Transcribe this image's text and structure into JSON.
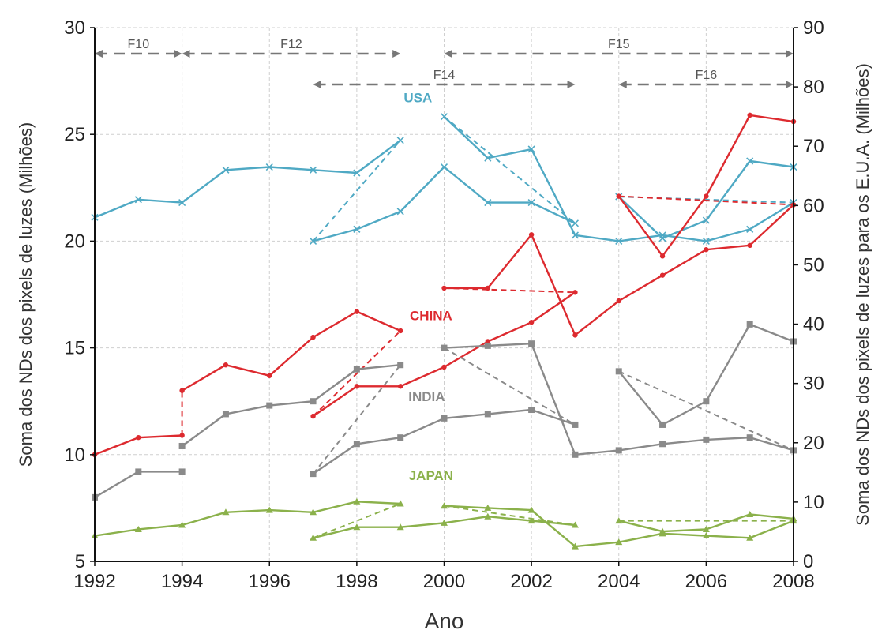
{
  "chart_data": {
    "type": "line",
    "xlabel": "Ano",
    "ylabel_left": "Soma dos NDs dos pixels de luzes (Milhões)",
    "ylabel_right": "Soma dos NDs dos pixels de luzes para os E.U.A. (Milhões)",
    "xlim": [
      1992,
      2008
    ],
    "ylim_left": [
      5,
      30
    ],
    "ylim_right": [
      0,
      90
    ],
    "x_ticks": [
      "1992",
      "1994",
      "1996",
      "1998",
      "2000",
      "2002",
      "2004",
      "2006",
      "2008"
    ],
    "y_ticks_left": [
      "5",
      "10",
      "15",
      "20",
      "25",
      "30"
    ],
    "y_ticks_right": [
      "0",
      "10",
      "20",
      "30",
      "40",
      "50",
      "60",
      "70",
      "80",
      "90"
    ],
    "grid": true,
    "satellites": [
      {
        "label": "F10",
        "start": 1992,
        "end": 1994
      },
      {
        "label": "F12",
        "start": 1994,
        "end": 1999
      },
      {
        "label": "F14",
        "start": 1997,
        "end": 2003
      },
      {
        "label": "F15",
        "start": 2000,
        "end": 2008
      },
      {
        "label": "F16",
        "start": 2004,
        "end": 2008
      }
    ],
    "countries": [
      {
        "label": "USA",
        "color": "#4fa9c4",
        "axis": "right",
        "marker": "x",
        "segments": [
          {
            "style": "solid",
            "x": [
              1992,
              1993,
              1994,
              1995,
              1996,
              1997,
              1998,
              1999
            ],
            "y": [
              58,
              61,
              60.5,
              66,
              66.5,
              66,
              65.5,
              71
            ]
          },
          {
            "style": "solid",
            "x": [
              1997,
              1998,
              1999,
              2000,
              2001,
              2002,
              2003
            ],
            "y": [
              54,
              56,
              59,
              66.5,
              60.5,
              60.5,
              57
            ]
          },
          {
            "style": "solid",
            "x": [
              2000,
              2001,
              2002,
              2003,
              2004,
              2005,
              2006,
              2007,
              2008
            ],
            "y": [
              75,
              68,
              69.5,
              55,
              54,
              55,
              54,
              56,
              60.5
            ]
          },
          {
            "style": "solid",
            "x": [
              2004,
              2005,
              2006,
              2007,
              2008
            ],
            "y": [
              61.5,
              54.5,
              57.5,
              67.5,
              66.5
            ]
          },
          {
            "style": "dashed",
            "x": [
              1997,
              1999
            ],
            "y": [
              54,
              71
            ]
          },
          {
            "style": "dashed",
            "x": [
              2000,
              2003
            ],
            "y": [
              75,
              57
            ]
          },
          {
            "style": "dashed",
            "x": [
              2004,
              2008
            ],
            "y": [
              61.5,
              60.5
            ]
          }
        ]
      },
      {
        "label": "CHINA",
        "color": "#dd2a2f",
        "axis": "left",
        "marker": "dot",
        "segments": [
          {
            "style": "solid",
            "x": [
              1992,
              1993,
              1994
            ],
            "y": [
              10,
              10.8,
              10.9
            ]
          },
          {
            "style": "solid",
            "x": [
              1994,
              1995,
              1996,
              1997,
              1998,
              1999
            ],
            "y": [
              13,
              14.2,
              13.7,
              15.5,
              16.7,
              15.8
            ]
          },
          {
            "style": "solid",
            "x": [
              1997,
              1998,
              1999,
              2000,
              2001,
              2002,
              2003
            ],
            "y": [
              11.8,
              13.2,
              13.2,
              14.1,
              15.3,
              16.2,
              17.6
            ]
          },
          {
            "style": "solid",
            "x": [
              2000,
              2001,
              2002,
              2003,
              2004,
              2005,
              2006,
              2007,
              2008
            ],
            "y": [
              17.8,
              17.8,
              20.3,
              15.6,
              17.2,
              18.4,
              19.6,
              19.8,
              21.7
            ]
          },
          {
            "style": "solid",
            "x": [
              2004,
              2005,
              2006,
              2007,
              2008
            ],
            "y": [
              22.1,
              19.3,
              22.1,
              25.9,
              25.6
            ]
          },
          {
            "style": "dashed",
            "x": [
              1994,
              1994
            ],
            "y": [
              10.9,
              13
            ]
          },
          {
            "style": "dashed",
            "x": [
              1997,
              1999
            ],
            "y": [
              11.8,
              15.8
            ]
          },
          {
            "style": "dashed",
            "x": [
              2000,
              2003
            ],
            "y": [
              17.8,
              17.6
            ]
          },
          {
            "style": "dashed",
            "x": [
              2004,
              2008
            ],
            "y": [
              22.1,
              21.7
            ]
          }
        ]
      },
      {
        "label": "INDIA",
        "color": "#8a8a8a",
        "axis": "left",
        "marker": "square",
        "segments": [
          {
            "style": "solid",
            "x": [
              1992,
              1993,
              1994
            ],
            "y": [
              8,
              9.2,
              9.2
            ]
          },
          {
            "style": "solid",
            "x": [
              1994,
              1995,
              1996,
              1997,
              1998,
              1999
            ],
            "y": [
              10.4,
              11.9,
              12.3,
              12.5,
              14.0,
              14.2
            ]
          },
          {
            "style": "solid",
            "x": [
              1997,
              1998,
              1999,
              2000,
              2001,
              2002,
              2003
            ],
            "y": [
              9.1,
              10.5,
              10.8,
              11.7,
              11.9,
              12.1,
              11.4
            ]
          },
          {
            "style": "solid",
            "x": [
              2000,
              2001,
              2002,
              2003,
              2004,
              2005,
              2006,
              2007,
              2008
            ],
            "y": [
              15.0,
              15.1,
              15.2,
              10.0,
              10.2,
              10.5,
              10.7,
              10.8,
              10.2
            ]
          },
          {
            "style": "solid",
            "x": [
              2004,
              2005,
              2006,
              2007,
              2008
            ],
            "y": [
              13.9,
              11.4,
              12.5,
              16.1,
              15.3
            ]
          },
          {
            "style": "dashed",
            "x": [
              1997,
              1999
            ],
            "y": [
              9.1,
              14.2
            ]
          },
          {
            "style": "dashed",
            "x": [
              2000,
              2003
            ],
            "y": [
              15.0,
              11.4
            ]
          },
          {
            "style": "dashed",
            "x": [
              2004,
              2008
            ],
            "y": [
              13.9,
              10.2
            ]
          }
        ]
      },
      {
        "label": "JAPAN",
        "color": "#8bb14b",
        "axis": "left",
        "marker": "triangle",
        "segments": [
          {
            "style": "solid",
            "x": [
              1992,
              1993,
              1994,
              1995,
              1996,
              1997,
              1998,
              1999
            ],
            "y": [
              6.2,
              6.5,
              6.7,
              7.3,
              7.4,
              7.3,
              7.8,
              7.7
            ]
          },
          {
            "style": "solid",
            "x": [
              1997,
              1998,
              1999,
              2000,
              2001,
              2002,
              2003
            ],
            "y": [
              6.1,
              6.6,
              6.6,
              6.8,
              7.1,
              6.9,
              6.7
            ]
          },
          {
            "style": "solid",
            "x": [
              2000,
              2001,
              2002,
              2003,
              2004,
              2005,
              2006,
              2007,
              2008
            ],
            "y": [
              7.6,
              7.5,
              7.4,
              5.7,
              5.9,
              6.3,
              6.2,
              6.1,
              6.9
            ]
          },
          {
            "style": "solid",
            "x": [
              2004,
              2005,
              2006,
              2007,
              2008
            ],
            "y": [
              6.9,
              6.4,
              6.5,
              7.2,
              7.0
            ]
          },
          {
            "style": "dashed",
            "x": [
              1997,
              1999
            ],
            "y": [
              6.1,
              7.7
            ]
          },
          {
            "style": "dashed",
            "x": [
              2000,
              2003
            ],
            "y": [
              7.6,
              6.7
            ]
          },
          {
            "style": "dashed",
            "x": [
              2004,
              2008
            ],
            "y": [
              6.9,
              6.9
            ]
          }
        ]
      }
    ]
  }
}
